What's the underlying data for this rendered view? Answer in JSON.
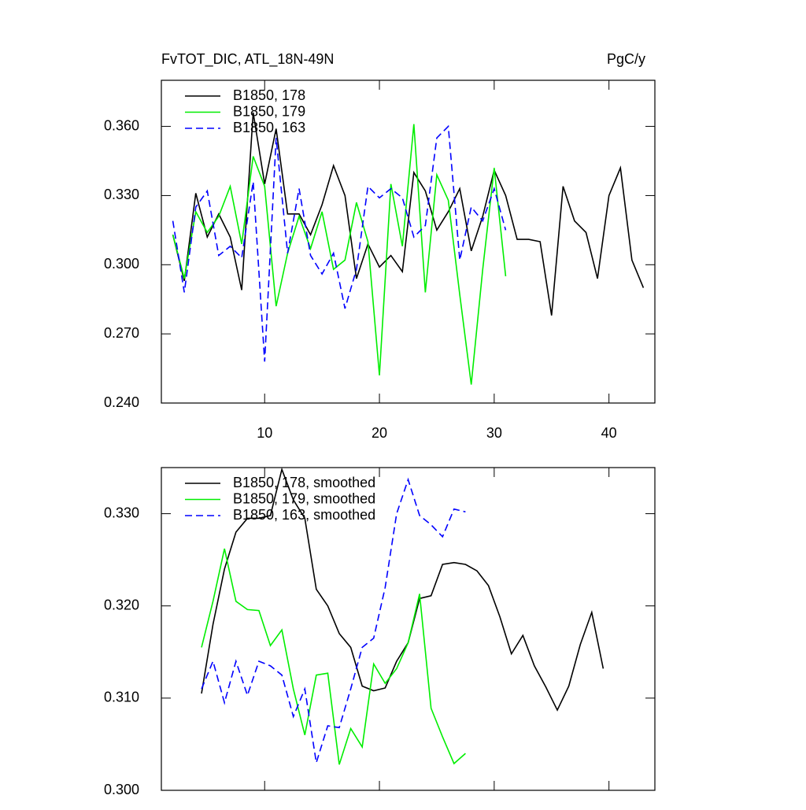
{
  "chart_data": [
    {
      "type": "line",
      "title": "FvTOT_DIC, ATL_18N-49N",
      "units": "PgC/y",
      "xlim": [
        1,
        44
      ],
      "xticks": [
        10,
        20,
        30,
        40
      ],
      "ylim": [
        0.24,
        0.38
      ],
      "yticks": [
        {
          "value": 0.24,
          "label": "0.240"
        },
        {
          "value": 0.27,
          "label": "0.270"
        },
        {
          "value": 0.3,
          "label": "0.300"
        },
        {
          "value": 0.33,
          "label": "0.330"
        },
        {
          "value": 0.36,
          "label": "0.360"
        }
      ],
      "series": [
        {
          "name": "B1850, 178",
          "color": "#000000",
          "dash": false,
          "x": [
            2,
            3,
            4,
            5,
            6,
            7,
            8,
            9,
            10,
            11,
            12,
            13,
            14,
            15,
            16,
            17,
            18,
            19,
            20,
            21,
            22,
            23,
            24,
            25,
            26,
            27,
            28,
            29,
            30,
            31,
            32,
            33,
            34,
            35,
            36,
            37,
            38,
            39,
            40,
            41,
            42,
            43
          ],
          "values": [
            0.313,
            0.293,
            0.331,
            0.312,
            0.322,
            0.312,
            0.289,
            0.366,
            0.335,
            0.359,
            0.322,
            0.322,
            0.313,
            0.326,
            0.343,
            0.33,
            0.294,
            0.309,
            0.299,
            0.304,
            0.297,
            0.34,
            0.332,
            0.315,
            0.323,
            0.333,
            0.306,
            0.321,
            0.341,
            0.33,
            0.311,
            0.311,
            0.31,
            0.278,
            0.334,
            0.319,
            0.314,
            0.294,
            0.33,
            0.342,
            0.302,
            0.29
          ]
        },
        {
          "name": "B1850, 179",
          "color": "#00ee00",
          "dash": false,
          "x": [
            2,
            3,
            4,
            5,
            6,
            7,
            8,
            9,
            10,
            11,
            12,
            13,
            14,
            15,
            16,
            17,
            18,
            19,
            20,
            21,
            22,
            23,
            24,
            25,
            26,
            27,
            28,
            29,
            30,
            31
          ],
          "values": [
            0.313,
            0.294,
            0.323,
            0.314,
            0.321,
            0.334,
            0.309,
            0.347,
            0.334,
            0.282,
            0.305,
            0.321,
            0.307,
            0.323,
            0.298,
            0.302,
            0.327,
            0.31,
            0.252,
            0.335,
            0.308,
            0.361,
            0.288,
            0.339,
            0.328,
            0.287,
            0.248,
            0.298,
            0.342,
            0.295
          ]
        },
        {
          "name": "B1850, 163",
          "color": "#0000ff",
          "dash": true,
          "x": [
            2,
            3,
            4,
            5,
            6,
            7,
            8,
            9,
            10,
            11,
            12,
            13,
            14,
            15,
            16,
            17,
            18,
            19,
            20,
            21,
            22,
            23,
            24,
            25,
            26,
            27,
            28,
            29,
            30,
            31
          ],
          "values": [
            0.319,
            0.288,
            0.325,
            0.332,
            0.304,
            0.308,
            0.303,
            0.336,
            0.258,
            0.355,
            0.305,
            0.333,
            0.304,
            0.296,
            0.305,
            0.281,
            0.298,
            0.334,
            0.329,
            0.333,
            0.329,
            0.312,
            0.317,
            0.355,
            0.36,
            0.302,
            0.325,
            0.319,
            0.333,
            0.315
          ]
        }
      ]
    },
    {
      "type": "line",
      "xlim": [
        1,
        44
      ],
      "xticks": [
        10,
        20,
        30,
        40
      ],
      "ylim": [
        0.3,
        0.335
      ],
      "yticks": [
        {
          "value": 0.3,
          "label": "0.300"
        },
        {
          "value": 0.31,
          "label": "0.310"
        },
        {
          "value": 0.32,
          "label": "0.320"
        },
        {
          "value": 0.33,
          "label": "0.330"
        }
      ],
      "series": [
        {
          "name": "B1850, 178, smoothed",
          "color": "#000000",
          "dash": false,
          "x": [
            4.5,
            5.5,
            6.5,
            7.5,
            8.5,
            9.5,
            10.5,
            11.5,
            12.5,
            13.5,
            14.5,
            15.5,
            16.5,
            17.5,
            18.5,
            19.5,
            20.5,
            21.5,
            22.5,
            23.5,
            24.5,
            25.5,
            26.5,
            27.5,
            28.5,
            29.5,
            30.5,
            31.5,
            32.5,
            33.5,
            34.5,
            35.5,
            36.5,
            37.5,
            38.5,
            39.5
          ],
          "values": [
            0.3105,
            0.318,
            0.324,
            0.328,
            0.3295,
            0.3295,
            0.3298,
            0.3348,
            0.3315,
            0.3295,
            0.3218,
            0.32,
            0.317,
            0.3155,
            0.3113,
            0.3108,
            0.3111,
            0.314,
            0.316,
            0.3208,
            0.3211,
            0.3245,
            0.3247,
            0.3245,
            0.3238,
            0.3222,
            0.3188,
            0.3148,
            0.3168,
            0.3135,
            0.3112,
            0.3087,
            0.3113,
            0.3158,
            0.3193,
            0.3132
          ]
        },
        {
          "name": "B1850, 179, smoothed",
          "color": "#00ee00",
          "dash": false,
          "x": [
            4.5,
            5.5,
            6.5,
            7.5,
            8.5,
            9.5,
            10.5,
            11.5,
            12.5,
            13.5,
            14.5,
            15.5,
            16.5,
            17.5,
            18.5,
            19.5,
            20.5,
            21.5,
            22.5,
            23.5,
            24.5,
            25.5,
            26.5,
            27.5
          ],
          "values": [
            0.3155,
            0.3205,
            0.3262,
            0.3205,
            0.3196,
            0.3195,
            0.3157,
            0.3174,
            0.311,
            0.306,
            0.3125,
            0.3127,
            0.3028,
            0.3067,
            0.3047,
            0.3137,
            0.3116,
            0.3132,
            0.316,
            0.3213,
            0.3089,
            0.3058,
            0.3029,
            0.304
          ]
        },
        {
          "name": "B1850, 163, smoothed",
          "color": "#0000ff",
          "dash": true,
          "x": [
            4.5,
            5.5,
            6.5,
            7.5,
            8.5,
            9.5,
            10.5,
            11.5,
            12.5,
            13.5,
            14.5,
            15.5,
            16.5,
            17.5,
            18.5,
            19.5,
            20.5,
            21.5,
            22.5,
            23.5,
            24.5,
            25.5,
            26.5,
            27.5
          ],
          "values": [
            0.311,
            0.314,
            0.3095,
            0.314,
            0.3103,
            0.314,
            0.3135,
            0.3125,
            0.308,
            0.311,
            0.303,
            0.307,
            0.3068,
            0.311,
            0.3155,
            0.3165,
            0.322,
            0.33,
            0.3337,
            0.3298,
            0.3288,
            0.3275,
            0.3305,
            0.3302
          ]
        }
      ]
    }
  ]
}
